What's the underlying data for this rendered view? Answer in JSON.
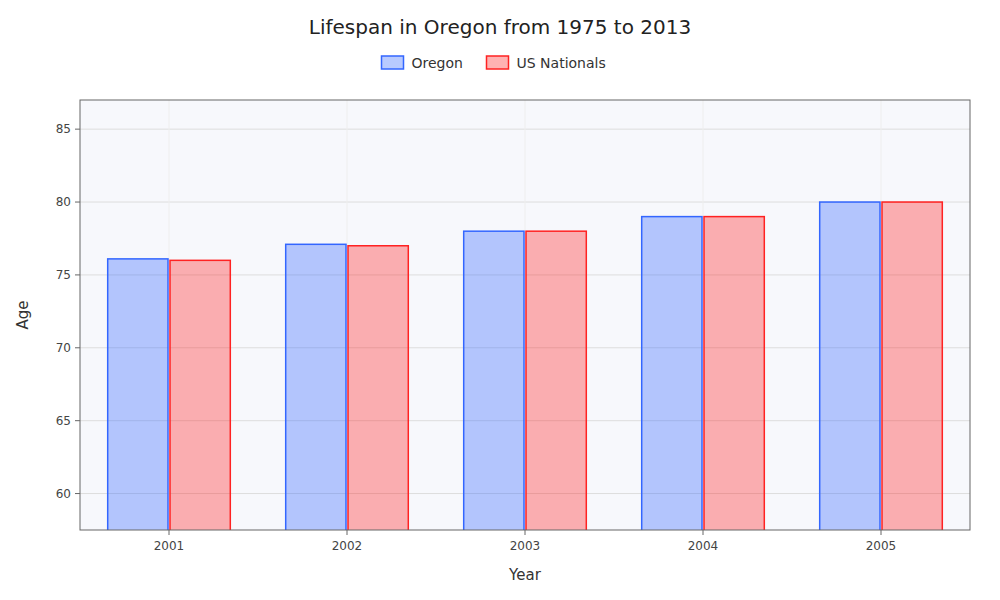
{
  "chart_data": {
    "type": "bar",
    "title": "Lifespan in Oregon from 1975 to 2013",
    "xlabel": "Year",
    "ylabel": "Age",
    "categories": [
      "2001",
      "2002",
      "2003",
      "2004",
      "2005"
    ],
    "series": [
      {
        "name": "Oregon",
        "color": "#3366FF",
        "values": [
          76.1,
          77.1,
          78.0,
          79.0,
          80.0
        ]
      },
      {
        "name": "US Nationals",
        "color": "#FF2222",
        "values": [
          76.0,
          77.0,
          78.0,
          79.0,
          80.0
        ]
      }
    ],
    "ylim": [
      57.5,
      87.0
    ],
    "yticks": [
      60,
      65,
      70,
      75,
      80,
      85
    ],
    "grid": true,
    "legend": "top"
  }
}
